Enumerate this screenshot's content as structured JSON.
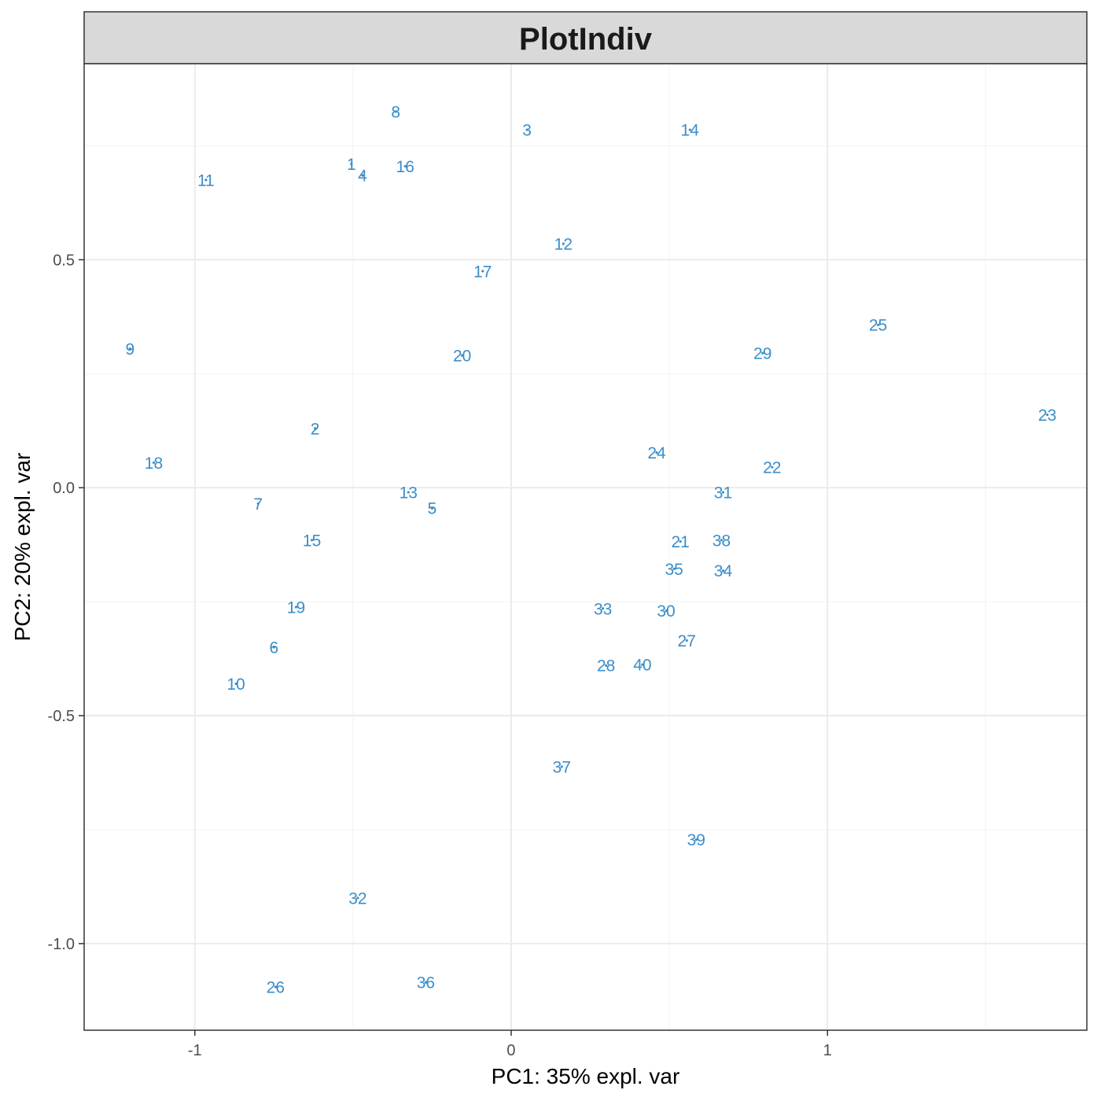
{
  "chart_data": {
    "type": "scatter",
    "title": "PlotIndiv",
    "xlabel": "PC1: 35% expl. var",
    "ylabel": "PC2: 20% expl. var",
    "xlim": [
      -1.35,
      1.82
    ],
    "ylim": [
      -1.19,
      0.93
    ],
    "x_ticks": [
      -1,
      0,
      1
    ],
    "x_tick_labels": [
      "-1",
      "0",
      "1"
    ],
    "y_ticks": [
      -1.0,
      -0.5,
      0.0,
      0.5
    ],
    "y_tick_labels": [
      "-1.0",
      "-0.5",
      "0.0",
      "0.5"
    ],
    "grid": true,
    "legend": "none",
    "point_color": "#3a8ec9",
    "points": [
      {
        "label": "1",
        "x": -0.505,
        "y": 0.71
      },
      {
        "label": "2",
        "x": -0.62,
        "y": 0.13
      },
      {
        "label": "3",
        "x": 0.05,
        "y": 0.785
      },
      {
        "label": "4",
        "x": -0.47,
        "y": 0.685
      },
      {
        "label": "5",
        "x": -0.25,
        "y": -0.045
      },
      {
        "label": "6",
        "x": -0.75,
        "y": -0.35
      },
      {
        "label": "7",
        "x": -0.8,
        "y": -0.035
      },
      {
        "label": "8",
        "x": -0.365,
        "y": 0.825
      },
      {
        "label": "9",
        "x": -1.205,
        "y": 0.305
      },
      {
        "label": "10",
        "x": -0.87,
        "y": -0.43
      },
      {
        "label": "11",
        "x": -0.965,
        "y": 0.675
      },
      {
        "label": "12",
        "x": 0.165,
        "y": 0.535
      },
      {
        "label": "13",
        "x": -0.325,
        "y": -0.01
      },
      {
        "label": "14",
        "x": 0.565,
        "y": 0.785
      },
      {
        "label": "15",
        "x": -0.63,
        "y": -0.115
      },
      {
        "label": "16",
        "x": -0.335,
        "y": 0.705
      },
      {
        "label": "17",
        "x": -0.09,
        "y": 0.475
      },
      {
        "label": "18",
        "x": -1.13,
        "y": 0.055
      },
      {
        "label": "19",
        "x": -0.68,
        "y": -0.262
      },
      {
        "label": "20",
        "x": -0.155,
        "y": 0.29
      },
      {
        "label": "21",
        "x": 0.535,
        "y": -0.118
      },
      {
        "label": "22",
        "x": 0.825,
        "y": 0.045
      },
      {
        "label": "23",
        "x": 1.695,
        "y": 0.16
      },
      {
        "label": "24",
        "x": 0.46,
        "y": 0.077
      },
      {
        "label": "25",
        "x": 1.16,
        "y": 0.357
      },
      {
        "label": "26",
        "x": -0.745,
        "y": -1.095
      },
      {
        "label": "27",
        "x": 0.555,
        "y": -0.335
      },
      {
        "label": "28",
        "x": 0.3,
        "y": -0.39
      },
      {
        "label": "29",
        "x": 0.795,
        "y": 0.295
      },
      {
        "label": "30",
        "x": 0.49,
        "y": -0.27
      },
      {
        "label": "31",
        "x": 0.67,
        "y": -0.01
      },
      {
        "label": "32",
        "x": -0.485,
        "y": -0.9
      },
      {
        "label": "33",
        "x": 0.29,
        "y": -0.265
      },
      {
        "label": "34",
        "x": 0.67,
        "y": -0.182
      },
      {
        "label": "35",
        "x": 0.515,
        "y": -0.178
      },
      {
        "label": "36",
        "x": -0.27,
        "y": -1.085
      },
      {
        "label": "37",
        "x": 0.16,
        "y": -0.612
      },
      {
        "label": "38",
        "x": 0.665,
        "y": -0.115
      },
      {
        "label": "39",
        "x": 0.585,
        "y": -0.772
      },
      {
        "label": "40",
        "x": 0.415,
        "y": -0.388
      }
    ]
  }
}
